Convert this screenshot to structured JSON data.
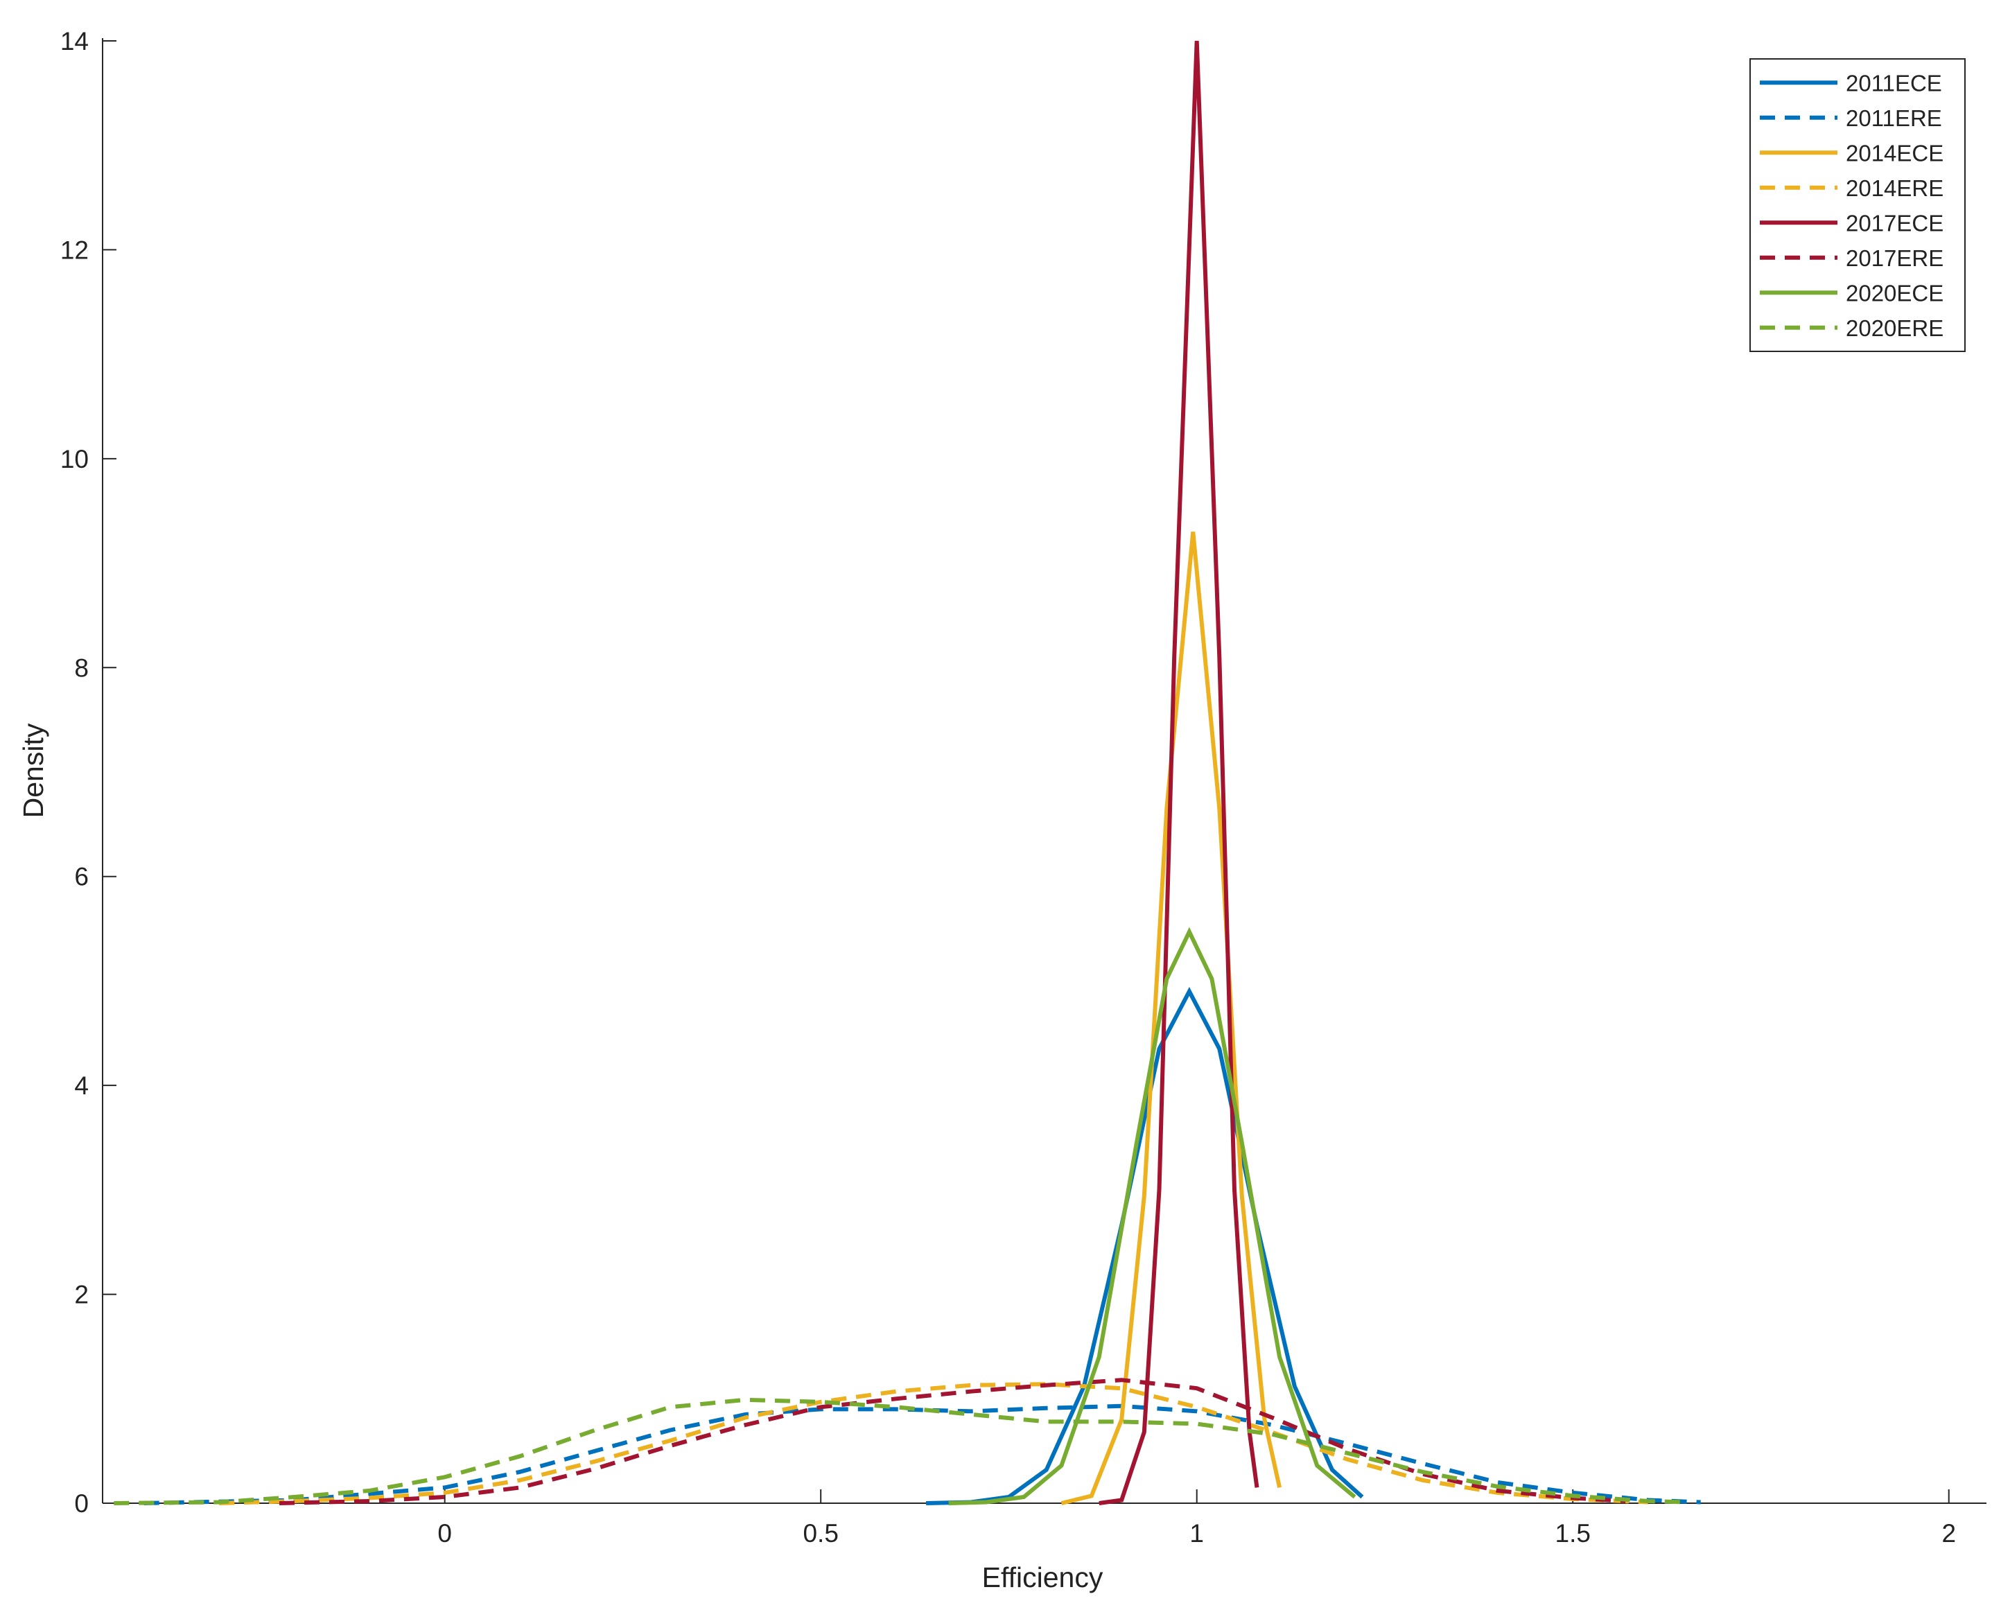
{
  "chart_data": {
    "type": "line",
    "xlabel": "Efficiency",
    "ylabel": "Density",
    "xlim": [
      -0.455,
      2.05
    ],
    "ylim": [
      0,
      14
    ],
    "xticks": [
      0,
      0.5,
      1,
      1.5,
      2
    ],
    "yticks": [
      0,
      2,
      4,
      6,
      8,
      10,
      12,
      14
    ],
    "grid": false,
    "legend": "upper right",
    "series": [
      {
        "name": "2011ECE",
        "color": "#0072BD",
        "line_style": "solid",
        "x": [
          0.64,
          0.7,
          0.75,
          0.8,
          0.85,
          0.9,
          0.95,
          0.99,
          1.03,
          1.08,
          1.13,
          1.18,
          1.22
        ],
        "values": [
          0,
          0.01,
          0.06,
          0.32,
          1.12,
          2.66,
          4.35,
          4.9,
          4.35,
          2.66,
          1.12,
          0.32,
          0.06
        ]
      },
      {
        "name": "2011ERE",
        "color": "#0072BD",
        "line_style": "dashed",
        "x": [
          -0.4,
          -0.2,
          0,
          0.1,
          0.2,
          0.3,
          0.4,
          0.5,
          0.6,
          0.7,
          0.8,
          0.9,
          1.0,
          1.1,
          1.2,
          1.3,
          1.4,
          1.5,
          1.6,
          1.67
        ],
        "values": [
          0,
          0.03,
          0.15,
          0.3,
          0.5,
          0.7,
          0.85,
          0.9,
          0.9,
          0.88,
          0.91,
          0.93,
          0.88,
          0.75,
          0.57,
          0.38,
          0.2,
          0.1,
          0.03,
          0.01
        ]
      },
      {
        "name": "2014ECE",
        "color": "#EDB120",
        "line_style": "solid",
        "x": [
          0.82,
          0.86,
          0.9,
          0.93,
          0.96,
          0.995,
          1.03,
          1.06,
          1.09,
          1.11
        ],
        "values": [
          0,
          0.07,
          0.8,
          2.94,
          6.65,
          9.3,
          6.65,
          2.94,
          0.8,
          0.15
        ]
      },
      {
        "name": "2014ERE",
        "color": "#EDB120",
        "line_style": "dashed",
        "x": [
          -0.3,
          -0.2,
          -0.1,
          0,
          0.1,
          0.2,
          0.3,
          0.4,
          0.5,
          0.6,
          0.7,
          0.8,
          0.9,
          1.0,
          1.1,
          1.2,
          1.3,
          1.4,
          1.5,
          1.6
        ],
        "values": [
          0,
          0.02,
          0.05,
          0.1,
          0.22,
          0.4,
          0.6,
          0.82,
          0.97,
          1.07,
          1.13,
          1.14,
          1.1,
          0.92,
          0.68,
          0.42,
          0.22,
          0.1,
          0.04,
          0.01
        ]
      },
      {
        "name": "2017ECE",
        "color": "#A2142F",
        "line_style": "solid",
        "x": [
          0.87,
          0.9,
          0.93,
          0.95,
          0.97,
          1.0,
          1.03,
          1.05,
          1.07,
          1.08
        ],
        "values": [
          0,
          0.03,
          0.68,
          3.0,
          8.1,
          14,
          8.1,
          3.0,
          0.68,
          0.15
        ]
      },
      {
        "name": "2017ERE",
        "color": "#A2142F",
        "line_style": "dashed",
        "x": [
          -0.22,
          -0.1,
          0,
          0.1,
          0.2,
          0.3,
          0.4,
          0.5,
          0.6,
          0.7,
          0.8,
          0.9,
          1.0,
          1.1,
          1.2,
          1.3,
          1.4,
          1.5,
          1.57
        ],
        "values": [
          0,
          0.02,
          0.06,
          0.15,
          0.33,
          0.55,
          0.75,
          0.92,
          1.0,
          1.07,
          1.13,
          1.18,
          1.1,
          0.82,
          0.52,
          0.28,
          0.12,
          0.05,
          0.02
        ]
      },
      {
        "name": "2020ECE",
        "color": "#77AC30",
        "line_style": "solid",
        "x": [
          0.67,
          0.72,
          0.77,
          0.82,
          0.87,
          0.92,
          0.96,
          0.99,
          1.02,
          1.06,
          1.11,
          1.16,
          1.21
        ],
        "values": [
          0,
          0.01,
          0.06,
          0.36,
          1.4,
          3.45,
          5.02,
          5.47,
          5.02,
          3.45,
          1.4,
          0.36,
          0.06
        ]
      },
      {
        "name": "2020ERE",
        "color": "#77AC30",
        "line_style": "dashed",
        "x": [
          -0.44,
          -0.3,
          -0.2,
          -0.1,
          0,
          0.1,
          0.2,
          0.3,
          0.4,
          0.5,
          0.6,
          0.7,
          0.8,
          0.9,
          1.0,
          1.1,
          1.2,
          1.3,
          1.4,
          1.5,
          1.6,
          1.65
        ],
        "values": [
          0,
          0.01,
          0.06,
          0.12,
          0.25,
          0.45,
          0.7,
          0.92,
          0.99,
          0.97,
          0.92,
          0.85,
          0.78,
          0.78,
          0.76,
          0.66,
          0.48,
          0.3,
          0.16,
          0.07,
          0.02,
          0.01
        ]
      }
    ]
  }
}
